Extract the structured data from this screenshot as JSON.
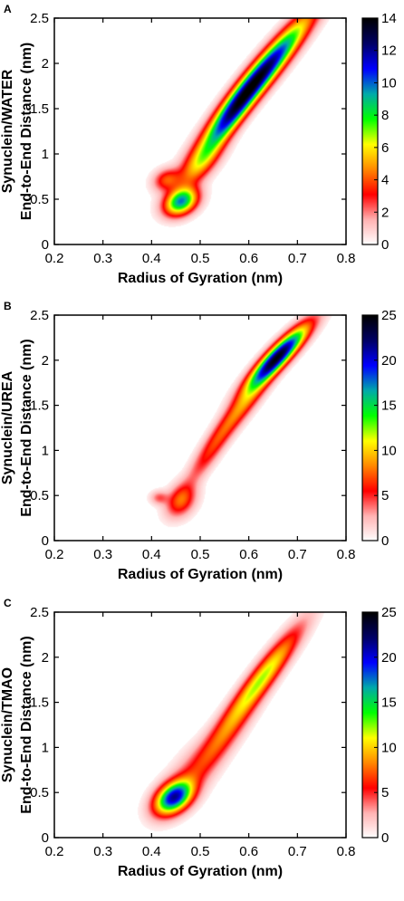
{
  "figure": {
    "colormap": [
      "#ffffff",
      "#ffb3b3",
      "#ff0000",
      "#ff8800",
      "#ffff00",
      "#00ff00",
      "#00aaaa",
      "#0000ff",
      "#000066",
      "#000000"
    ]
  },
  "chart_data": [
    {
      "panel_label": "A",
      "type": "heatmap",
      "row_label": "Synuclein/WATER",
      "xlabel": "Radius of Gyration (nm)",
      "ylabel": "End-to-End Distance (nm)",
      "xlim": [
        0.2,
        0.8
      ],
      "ylim": [
        0,
        2.5
      ],
      "xticks": [
        "0.2",
        "0.3",
        "0.4",
        "0.5",
        "0.6",
        "0.7",
        "0.8"
      ],
      "yticks": [
        "0",
        "0.5",
        "1",
        "1.5",
        "2",
        "2.5"
      ],
      "colorbar": {
        "min": 0,
        "max": 14,
        "ticks": [
          "0",
          "2",
          "4",
          "6",
          "8",
          "10",
          "12",
          "14"
        ]
      },
      "regions": [
        {
          "x": 0.62,
          "y": 1.85,
          "sx": 0.065,
          "sy": 0.42,
          "rho": 0.95,
          "peak": 13
        },
        {
          "x": 0.555,
          "y": 1.35,
          "sx": 0.04,
          "sy": 0.3,
          "rho": 0.9,
          "peak": 5
        },
        {
          "x": 0.46,
          "y": 0.48,
          "sx": 0.022,
          "sy": 0.1,
          "rho": 0.3,
          "peak": 9
        },
        {
          "x": 0.43,
          "y": 0.72,
          "sx": 0.018,
          "sy": 0.08,
          "rho": 0.2,
          "peak": 3
        },
        {
          "x": 0.5,
          "y": 0.9,
          "sx": 0.03,
          "sy": 0.18,
          "rho": 0.7,
          "peak": 3.5
        }
      ]
    },
    {
      "panel_label": "B",
      "type": "heatmap",
      "row_label": "Synuclein/UREA",
      "xlabel": "Radius of Gyration (nm)",
      "ylabel": "End-to-End Distance (nm)",
      "xlim": [
        0.2,
        0.8
      ],
      "ylim": [
        0,
        2.5
      ],
      "xticks": [
        "0.2",
        "0.3",
        "0.4",
        "0.5",
        "0.6",
        "0.7",
        "0.8"
      ],
      "yticks": [
        "0",
        "0.5",
        "1",
        "1.5",
        "2",
        "2.5"
      ],
      "colorbar": {
        "min": 0,
        "max": 25,
        "ticks": [
          "0",
          "5",
          "10",
          "15",
          "20",
          "25"
        ]
      },
      "regions": [
        {
          "x": 0.66,
          "y": 2.05,
          "sx": 0.04,
          "sy": 0.22,
          "rho": 0.9,
          "peak": 22
        },
        {
          "x": 0.6,
          "y": 1.6,
          "sx": 0.045,
          "sy": 0.32,
          "rho": 0.93,
          "peak": 7
        },
        {
          "x": 0.52,
          "y": 1.0,
          "sx": 0.035,
          "sy": 0.28,
          "rho": 0.9,
          "peak": 4
        },
        {
          "x": 0.46,
          "y": 0.45,
          "sx": 0.02,
          "sy": 0.12,
          "rho": 0.3,
          "peak": 6
        },
        {
          "x": 0.415,
          "y": 0.48,
          "sx": 0.012,
          "sy": 0.05,
          "rho": 0.0,
          "peak": 3
        }
      ]
    },
    {
      "panel_label": "C",
      "type": "heatmap",
      "row_label": "Synuclein/TMAO",
      "xlabel": "Radius of Gyration (nm)",
      "ylabel": "End-to-End Distance (nm)",
      "xlim": [
        0.2,
        0.8
      ],
      "ylim": [
        0,
        2.5
      ],
      "xticks": [
        "0.2",
        "0.3",
        "0.4",
        "0.5",
        "0.6",
        "0.7",
        "0.8"
      ],
      "yticks": [
        "0",
        "0.5",
        "1",
        "1.5",
        "2",
        "2.5"
      ],
      "colorbar": {
        "min": 0,
        "max": 25,
        "ticks": [
          "0",
          "5",
          "10",
          "15",
          "20",
          "25"
        ]
      },
      "regions": [
        {
          "x": 0.63,
          "y": 1.8,
          "sx": 0.05,
          "sy": 0.35,
          "rho": 0.93,
          "peak": 10
        },
        {
          "x": 0.55,
          "y": 1.15,
          "sx": 0.045,
          "sy": 0.32,
          "rho": 0.88,
          "peak": 5
        },
        {
          "x": 0.445,
          "y": 0.45,
          "sx": 0.025,
          "sy": 0.12,
          "rho": 0.4,
          "peak": 19
        },
        {
          "x": 0.48,
          "y": 0.7,
          "sx": 0.04,
          "sy": 0.25,
          "rho": 0.7,
          "peak": 3
        }
      ]
    }
  ]
}
